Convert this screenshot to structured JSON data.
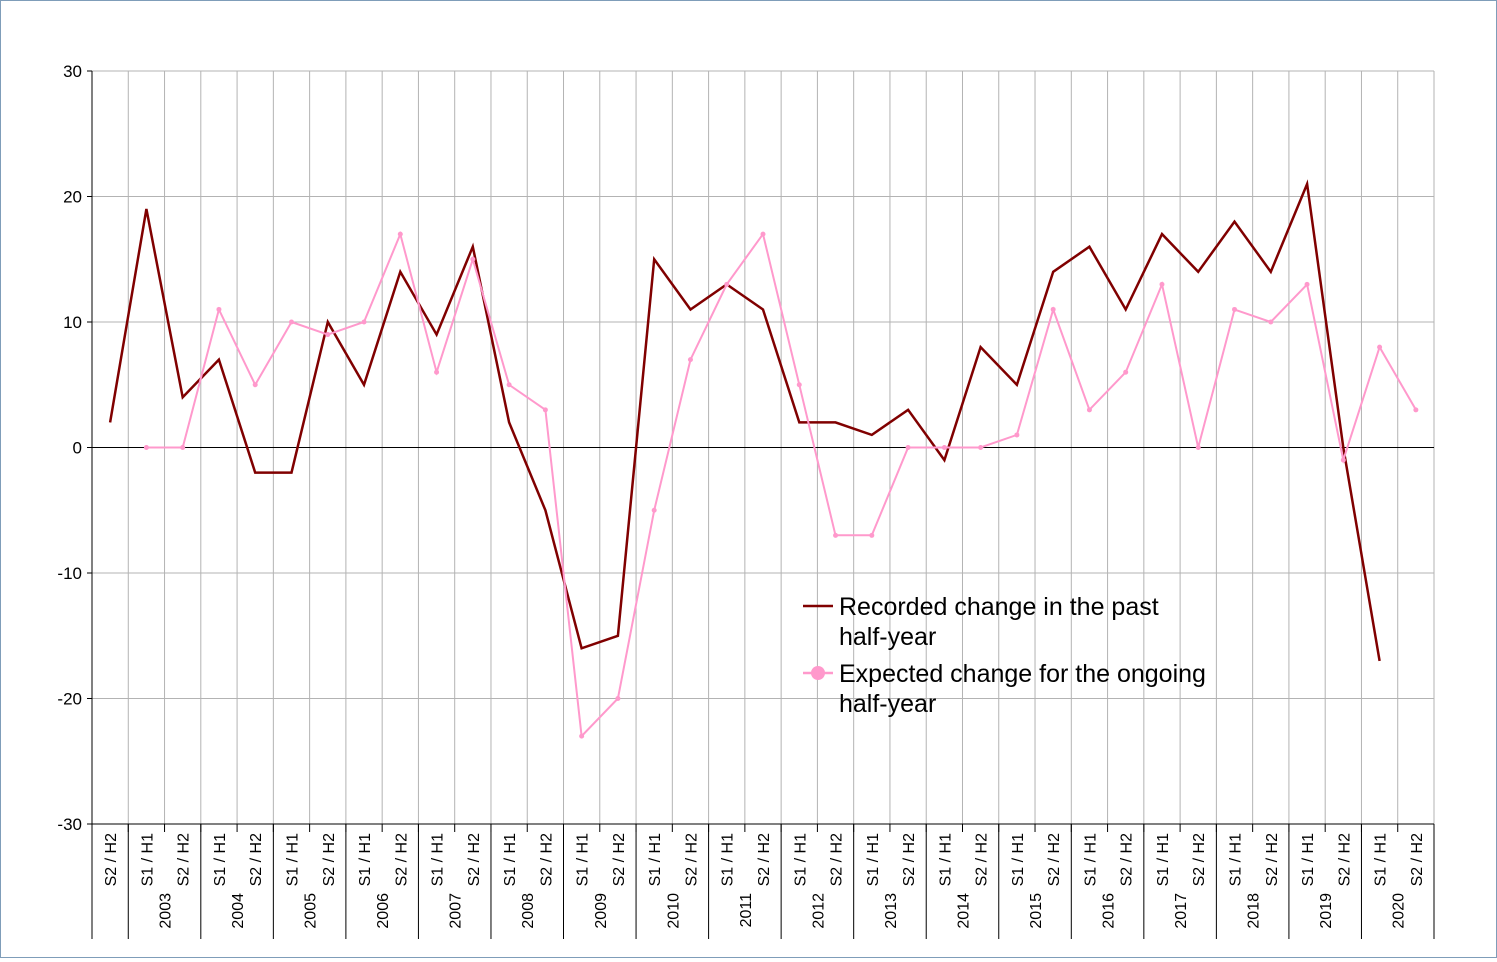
{
  "chart_data": {
    "type": "line",
    "title": "",
    "xlabel": "",
    "ylabel": "",
    "ylim": [
      -30,
      30
    ],
    "y_ticks": [
      "30",
      "20",
      "10",
      "0",
      "-10",
      "-20",
      "-30"
    ],
    "grid": true,
    "legend_position": "center-right",
    "period_labels": [
      "S2 / H2",
      "S1 / H1",
      "S2 / H2",
      "S1 / H1",
      "S2 / H2",
      "S1 / H1",
      "S2 / H2",
      "S1 / H1",
      "S2 / H2",
      "S1 / H1",
      "S2 / H2",
      "S1 / H1",
      "S2 / H2",
      "S1 / H1",
      "S2 / H2",
      "S1 / H1",
      "S2 / H2",
      "S1 / H1",
      "S2 / H2",
      "S1 / H1",
      "S2 / H2",
      "S1 / H1",
      "S2 / H2",
      "S1 / H1",
      "S2 / H2",
      "S1 / H1",
      "S2 / H2",
      "S1 / H1",
      "S2 / H2",
      "S1 / H1",
      "S2 / H2",
      "S1 / H1",
      "S2 / H2",
      "S1 / H1",
      "S2 / H2",
      "S1 / H1",
      "S2 / H2"
    ],
    "year_labels": [
      "2003",
      "2004",
      "2005",
      "2006",
      "2007",
      "2008",
      "2009",
      "2010",
      "2011",
      "2012",
      "2013",
      "2014",
      "2015",
      "2016",
      "2017",
      "2018",
      "2019",
      "2020"
    ],
    "series": [
      {
        "name": "Recorded change in the past half-year",
        "color": "#800000",
        "marker": "none",
        "values": [
          2,
          19,
          4,
          7,
          -2,
          -2,
          10,
          5,
          14,
          9,
          16,
          2,
          -5,
          -16,
          -15,
          15,
          11,
          13,
          11,
          2,
          2,
          1,
          3,
          -1,
          8,
          5,
          14,
          16,
          11,
          17,
          14,
          18,
          14,
          21,
          0,
          -17,
          null
        ]
      },
      {
        "name": "Expected change for the ongoing half-year",
        "color": "#ff99cc",
        "marker": "circle",
        "values": [
          null,
          0,
          0,
          11,
          5,
          10,
          9,
          10,
          17,
          6,
          15,
          5,
          3,
          -23,
          -20,
          -5,
          7,
          13,
          17,
          5,
          -7,
          -7,
          0,
          0,
          0,
          1,
          11,
          3,
          6,
          13,
          0,
          11,
          10,
          13,
          -1,
          8,
          3
        ]
      }
    ]
  }
}
